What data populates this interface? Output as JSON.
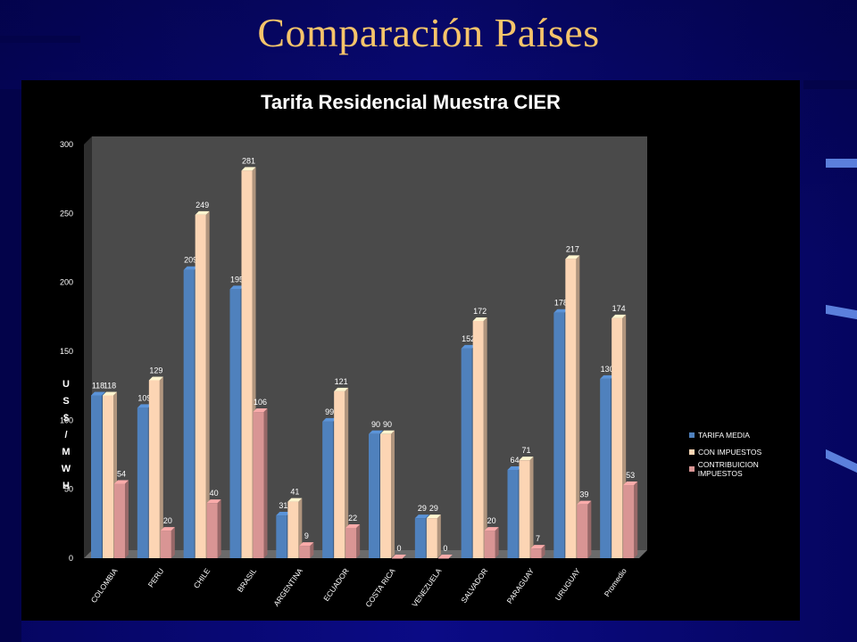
{
  "slide": {
    "title": "Comparación Países"
  },
  "chart_data": {
    "type": "bar",
    "title": "Tarifa Residencial Muestra CIER",
    "ylabel": "US$/MWH",
    "ylabel_chars": [
      "U",
      "S",
      "$",
      "/",
      "M",
      "W",
      "H"
    ],
    "ylim": [
      0,
      300
    ],
    "yticks": [
      0,
      50,
      100,
      150,
      200,
      250,
      300
    ],
    "categories": [
      "COLOMBIA",
      "PERU",
      "CHILE",
      "BRASIL",
      "ARGENTINA",
      "ECUADOR",
      "COSTA RICA",
      "VENEZUELA",
      "SALVADOR",
      "PARAGUAY",
      "URUGUAY",
      "Promedio"
    ],
    "series": [
      {
        "name": "TARIFA MEDIA",
        "color": "#4f81bd",
        "values": [
          118,
          109,
          209,
          195,
          31,
          99,
          90,
          29,
          152,
          64,
          178,
          130
        ]
      },
      {
        "name": "CON IMPUESTOS",
        "color": "#fcd5b4",
        "values": [
          118,
          129,
          249,
          281,
          41,
          121,
          90,
          29,
          172,
          71,
          217,
          174
        ]
      },
      {
        "name": "CONTRIBUICION IMPUESTOS",
        "color": "#d99594",
        "values": [
          54,
          20,
          40,
          106,
          9,
          22,
          0,
          0,
          20,
          7,
          39,
          53
        ]
      }
    ],
    "legend_position": "right",
    "data_labels": true,
    "grid": false
  }
}
